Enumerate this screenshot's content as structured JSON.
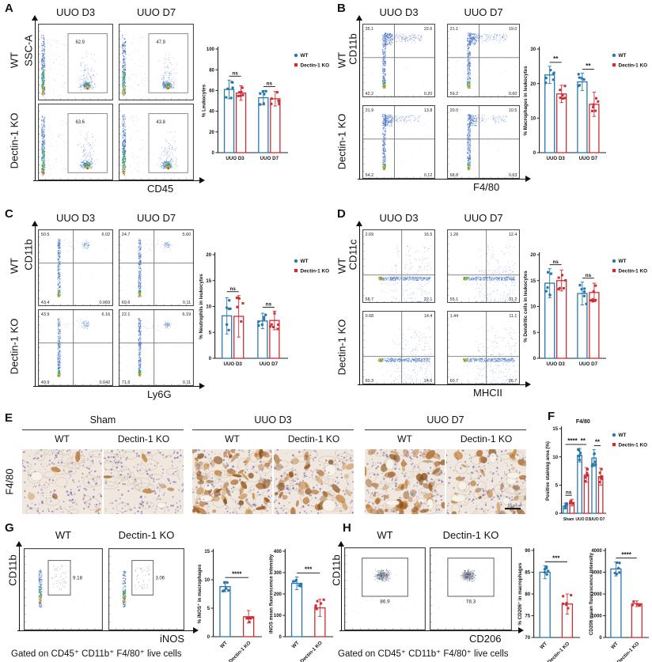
{
  "colors": {
    "wt": "#2878ae",
    "ko": "#cf2b33",
    "flow_dot": "#4a74c6",
    "flow_green": "#37b34a",
    "flow_yellow": "#e7c41e",
    "flow_orange": "#e2641f",
    "flow_red": "#cf2b1d"
  },
  "panels": {
    "a": {
      "letter": "A",
      "columns": [
        "UUO D3",
        "UUO D7"
      ],
      "rows": [
        "WT",
        "Dectin-1 KO"
      ],
      "y_axis": "SSC-A",
      "x_axis": "CD45",
      "plots": [
        {
          "style": "gateRight",
          "gate": "62.9"
        },
        {
          "style": "gateRight",
          "gate": "47.9"
        },
        {
          "style": "gateRight",
          "gate": "63.6"
        },
        {
          "style": "gateRight",
          "gate": "43.8"
        }
      ]
    },
    "b": {
      "letter": "B",
      "columns": [
        "UUO D3",
        "UUO D7"
      ],
      "rows": [
        "WT",
        "Dectin-1 KO"
      ],
      "y_axis": "CD11b",
      "x_axis": "F4/80",
      "plots": [
        {
          "style": "quadUp",
          "q": [
            "35.1",
            "22.6",
            "42.2",
            "0.20"
          ]
        },
        {
          "style": "quadUp",
          "q": [
            "21.1",
            "19.0",
            "59.2",
            "0.60"
          ]
        },
        {
          "style": "quadUp",
          "q": [
            "31.9",
            "13.8",
            "54.2",
            "0.12"
          ]
        },
        {
          "style": "quadUp",
          "q": [
            "20.0",
            "10.5",
            "68.8",
            "0.63"
          ]
        }
      ]
    },
    "c": {
      "letter": "C",
      "columns": [
        "UUO D3",
        "UUO D7"
      ],
      "rows": [
        "WT",
        "Dectin-1 KO"
      ],
      "y_axis": "CD11b",
      "x_axis": "Ly6G",
      "plots": [
        {
          "style": "quadUpC",
          "q": [
            "50.5",
            "6.02",
            "43.4",
            "0.069"
          ]
        },
        {
          "style": "quadUpC",
          "q": [
            "24.7",
            "5.60",
            "69.6",
            "0.11"
          ]
        },
        {
          "style": "quadUpC",
          "q": [
            "43.9",
            "6.16",
            "49.9",
            "0.042"
          ]
        },
        {
          "style": "quadUpC",
          "q": [
            "22.1",
            "6.19",
            "71.6",
            "0.11"
          ]
        }
      ]
    },
    "d": {
      "letter": "D",
      "columns": [
        "UUO D3",
        "UUO D7"
      ],
      "rows": [
        "WT",
        "Dectin-1 KO"
      ],
      "y_axis": "CD11c",
      "x_axis": "MHCII",
      "plots": [
        {
          "style": "quadBottom",
          "q": [
            "2.69",
            "16.5",
            "58.7",
            "22.1"
          ]
        },
        {
          "style": "quadBottom",
          "q": [
            "1.28",
            "12.4",
            "55.1",
            "31.2"
          ]
        },
        {
          "style": "quadBottom",
          "q": [
            "0.68",
            "14.4",
            "60.3",
            "24.6"
          ]
        },
        {
          "style": "quadBottom",
          "q": [
            "1.44",
            "11.1",
            "60.7",
            "26.7"
          ]
        }
      ]
    },
    "e": {
      "letter": "E",
      "row_label": "F4/80",
      "groups": [
        "Sham",
        "UUO D3",
        "UUO D7"
      ],
      "genotypes": [
        "WT",
        "Dectin-1 KO"
      ],
      "images": [
        {
          "group": "Sham",
          "genotype": "WT",
          "brown": 0.06,
          "lumens": 1
        },
        {
          "group": "Sham",
          "genotype": "Dectin-1 KO",
          "brown": 0.06,
          "lumens": 1
        },
        {
          "group": "UUO D3",
          "genotype": "WT",
          "brown": 0.95,
          "lumens": 2
        },
        {
          "group": "UUO D3",
          "genotype": "Dectin-1 KO",
          "brown": 0.5,
          "lumens": 2
        },
        {
          "group": "UUO D7",
          "genotype": "WT",
          "brown": 0.8,
          "lumens": 5
        },
        {
          "group": "UUO D7",
          "genotype": "Dectin-1 KO",
          "brown": 0.4,
          "lumens": 6,
          "scalebar": "50 μm"
        }
      ]
    },
    "f": {
      "letter": "F"
    },
    "g": {
      "letter": "G",
      "columns": [
        "WT",
        "Dectin-1 KO"
      ],
      "y_axis": "CD11b",
      "x_axis": "iNOS",
      "caption": "Gated on CD45⁺ CD11b⁺ F4/80⁺ live cells",
      "plots": [
        {
          "style": "gateSmall",
          "gate": "9.18"
        },
        {
          "style": "gateSmall",
          "gate": "3.06"
        }
      ]
    },
    "h": {
      "letter": "H",
      "columns": [
        "WT",
        "Dectin-1 KO"
      ],
      "y_axis": "CD11b",
      "x_axis": "CD206",
      "caption": "Gated on CD45⁺ CD11b⁺ F4/80⁺ live cells",
      "plots": [
        {
          "style": "gateCenter",
          "gate": "86.9"
        },
        {
          "style": "gateCenter",
          "gate": "78.3"
        }
      ]
    }
  },
  "chart_data": [
    {
      "panel": "A",
      "type": "bar",
      "kind": "grouped",
      "ylabel": "% Leukocytes",
      "ylim": [
        0,
        100
      ],
      "yticks": [
        0,
        20,
        40,
        60,
        80,
        100
      ],
      "categories": [
        "UUO D3",
        "UUO D7"
      ],
      "series": [
        {
          "name": "WT",
          "values": [
            61,
            53
          ],
          "err": [
            9,
            7
          ]
        },
        {
          "name": "Dectin-1 KO",
          "values": [
            57.5,
            52
          ],
          "err": [
            7,
            7
          ]
        }
      ],
      "sig": [
        {
          "label": "ns",
          "from": [
            0,
            0
          ],
          "to": [
            0,
            1
          ]
        },
        {
          "label": "ns",
          "from": [
            1,
            0
          ],
          "to": [
            1,
            1
          ]
        }
      ],
      "n": 6,
      "legend": true
    },
    {
      "panel": "B",
      "type": "bar",
      "kind": "grouped",
      "ylabel": "% Macrophages in leukocytes",
      "ylim": [
        0,
        30
      ],
      "yticks": [
        0,
        10,
        20,
        30
      ],
      "categories": [
        "UUO D3",
        "UUO D7"
      ],
      "series": [
        {
          "name": "WT",
          "values": [
            22.5,
            20.5
          ],
          "err": [
            2.5,
            2.5
          ]
        },
        {
          "name": "Dectin-1 KO",
          "values": [
            17,
            14
          ],
          "err": [
            2.5,
            3.5
          ]
        }
      ],
      "sig": [
        {
          "label": "**",
          "from": [
            0,
            0
          ],
          "to": [
            0,
            1
          ]
        },
        {
          "label": "**",
          "from": [
            1,
            0
          ],
          "to": [
            1,
            1
          ]
        }
      ],
      "n": 6,
      "legend": true
    },
    {
      "panel": "C",
      "type": "bar",
      "kind": "grouped",
      "ylabel": "% Neutrophils in leukocytes",
      "ylim": [
        0,
        20
      ],
      "yticks": [
        0,
        5,
        10,
        15,
        20
      ],
      "categories": [
        "UUO D3",
        "UUO D7"
      ],
      "series": [
        {
          "name": "WT",
          "values": [
            8.2,
            7.2
          ],
          "err": [
            3.5,
            1.5
          ]
        },
        {
          "name": "Dectin-1 KO",
          "values": [
            8.1,
            7.3
          ],
          "err": [
            4,
            1.8
          ]
        }
      ],
      "sig": [
        {
          "label": "ns",
          "from": [
            0,
            0
          ],
          "to": [
            0,
            1
          ]
        },
        {
          "label": "ns",
          "from": [
            1,
            0
          ],
          "to": [
            1,
            1
          ]
        }
      ],
      "n": 6,
      "legend": true
    },
    {
      "panel": "D",
      "type": "bar",
      "kind": "grouped",
      "ylabel": "% Dendritic cells in leukocytes",
      "ylim": [
        0,
        20
      ],
      "yticks": [
        0,
        5,
        10,
        15,
        20
      ],
      "categories": [
        "UUO D3",
        "UUO D7"
      ],
      "series": [
        {
          "name": "WT",
          "values": [
            14.5,
            12.5
          ],
          "err": [
            2.8,
            2.2
          ]
        },
        {
          "name": "Dectin-1 KO",
          "values": [
            15,
            12.7
          ],
          "err": [
            2,
            1.8
          ]
        }
      ],
      "sig": [
        {
          "label": "ns",
          "from": [
            0,
            0
          ],
          "to": [
            0,
            1
          ]
        },
        {
          "label": "ns",
          "from": [
            1,
            0
          ],
          "to": [
            1,
            1
          ]
        }
      ],
      "n": 6,
      "legend": true
    },
    {
      "panel": "F",
      "type": "bar",
      "kind": "grouped",
      "title": "F4/80",
      "ylabel": "Positive staining area (%)",
      "ylim": [
        0,
        15
      ],
      "yticks": [
        0,
        5,
        10,
        15
      ],
      "categories": [
        "Sham",
        "UUO D3",
        "UUO D7"
      ],
      "cat_font": 5,
      "series": [
        {
          "name": "WT",
          "values": [
            1.3,
            10.3,
            9.8
          ],
          "err": [
            0.5,
            1.2,
            1.5
          ]
        },
        {
          "name": "Dectin-1 KO",
          "values": [
            1.9,
            6.8,
            6.5
          ],
          "err": [
            0.6,
            1.3,
            1.5
          ]
        }
      ],
      "sig": [
        {
          "label": "ns",
          "from": [
            0,
            0
          ],
          "to": [
            0,
            1
          ]
        },
        {
          "label": "****",
          "from": [
            0,
            0
          ],
          "to": [
            1,
            0
          ]
        },
        {
          "label": "**",
          "from": [
            1,
            0
          ],
          "to": [
            1,
            1
          ]
        },
        {
          "label": "**",
          "from": [
            2,
            0
          ],
          "to": [
            2,
            1
          ]
        }
      ],
      "n": 6,
      "legend": true
    },
    {
      "panel": "G",
      "type": "bar",
      "kind": "pair",
      "ylabel": "% iNOS⁺ in macrophages",
      "ylim": [
        0,
        15
      ],
      "yticks": [
        0,
        5,
        10,
        15
      ],
      "categories": [
        "WT",
        "Dectin-1 KO"
      ],
      "values": [
        8.8,
        3.5
      ],
      "err": [
        0.9,
        1.1
      ],
      "sig": [
        {
          "label": "****",
          "from": 0,
          "to": 1
        }
      ],
      "n": 6
    },
    {
      "panel": "G",
      "type": "bar",
      "kind": "pair",
      "ylabel": "iNOS mean fluorescence intensity",
      "ylim": [
        0,
        400
      ],
      "yticks": [
        0,
        100,
        200,
        300,
        400
      ],
      "categories": [
        "WT",
        "Dectin-1 KO"
      ],
      "values": [
        250,
        135
      ],
      "err": [
        30,
        40
      ],
      "sig": [
        {
          "label": "***",
          "from": 0,
          "to": 1
        }
      ],
      "n": 6
    },
    {
      "panel": "H",
      "type": "bar",
      "kind": "pair",
      "ylabel": "% CD206⁺ in macrophages",
      "ylim": [
        70,
        90
      ],
      "yticks": [
        70,
        75,
        80,
        85,
        90
      ],
      "categories": [
        "WT",
        "Dectin-1 KO"
      ],
      "values": [
        85,
        77.7
      ],
      "err": [
        1.5,
        2.3
      ],
      "sig": [
        {
          "label": "***",
          "from": 0,
          "to": 1
        }
      ],
      "n": 6
    },
    {
      "panel": "H",
      "type": "bar",
      "kind": "pair",
      "ylabel": "CD206 mean fluorescence intensity",
      "ylim": [
        0,
        4000
      ],
      "yticks": [
        0,
        1000,
        2000,
        3000,
        4000
      ],
      "categories": [
        "WT",
        "Dectin-1 KO"
      ],
      "values": [
        3150,
        1550
      ],
      "err": [
        320,
        130
      ],
      "sig": [
        {
          "label": "****",
          "from": 0,
          "to": 1
        }
      ],
      "n": 6
    }
  ]
}
